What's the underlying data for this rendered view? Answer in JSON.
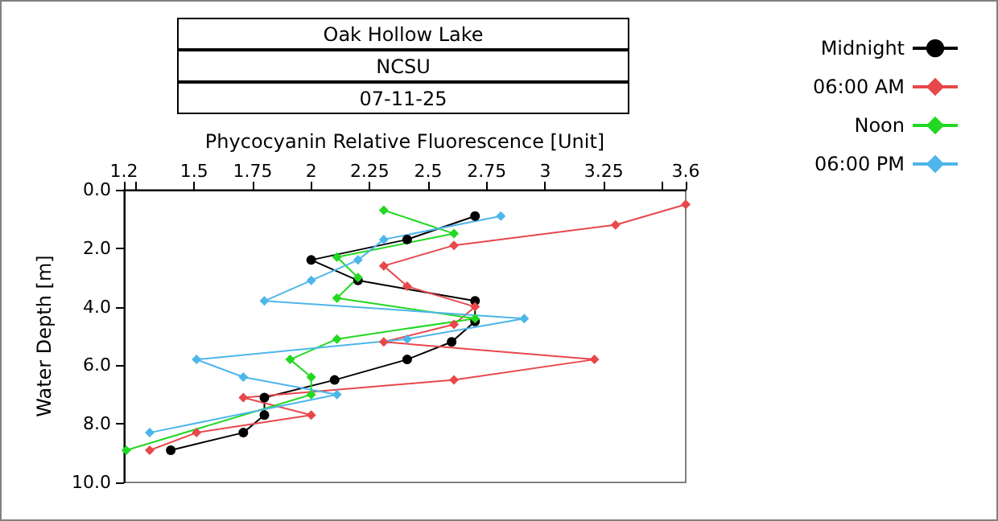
{
  "chart_data": {
    "type": "line",
    "title": "Oak Hollow Lake",
    "subtitle": "NCSU",
    "annotations": [
      "07-11-25"
    ],
    "xlabel": "Phycocyanin Relative Fluorescence [Unit]",
    "ylabel": "Water Depth [m]",
    "xlim": [
      1.2,
      3.6
    ],
    "xticks": [
      1.2,
      {
        "value": 1.25,
        "label": null
      },
      1.5,
      1.75,
      2,
      2.25,
      2.5,
      2.75,
      3,
      3.25,
      {
        "value": 3.5,
        "label": null
      },
      3.6
    ],
    "ylim": [
      10,
      0
    ],
    "yticks": [
      {
        "value": 0,
        "label": "0.0"
      },
      {
        "value": 2,
        "label": "2.0"
      },
      {
        "value": 4,
        "label": "4.0"
      },
      {
        "value": 6,
        "label": "6.0"
      },
      {
        "value": 8,
        "label": "8.0"
      },
      {
        "value": 10,
        "label": "10.0"
      }
    ],
    "grid": false,
    "legend": "top right",
    "marker": "diamond",
    "line_style": "solid",
    "series": [
      {
        "name": "Midnight",
        "color": "#000000",
        "marker": "circle",
        "x": [
          2.7,
          2.41,
          2.0,
          2.2,
          2.7,
          2.7,
          2.6,
          2.41,
          2.1,
          1.8,
          1.8,
          1.71,
          1.4
        ],
        "values": [
          0.9,
          1.7,
          2.4,
          3.1,
          3.8,
          4.5,
          5.2,
          5.8,
          6.5,
          7.1,
          7.7,
          8.3,
          8.9
        ]
      },
      {
        "name": "06:00 AM",
        "color": "#e8474b",
        "x": [
          3.6,
          3.3,
          2.61,
          2.31,
          2.41,
          2.7,
          2.61,
          2.31,
          3.21,
          2.61,
          1.71,
          2.0,
          1.51,
          1.31
        ],
        "values": [
          0.5,
          1.2,
          1.9,
          2.6,
          3.3,
          4.0,
          4.6,
          5.2,
          5.8,
          6.5,
          7.1,
          7.7,
          8.3,
          8.9
        ]
      },
      {
        "name": "Noon",
        "color": "#22d822",
        "x": [
          2.31,
          2.61,
          2.11,
          2.2,
          2.11,
          2.7,
          2.11,
          1.91,
          2.0,
          2.0,
          1.21
        ],
        "values": [
          0.7,
          1.5,
          2.3,
          3.0,
          3.7,
          4.4,
          5.1,
          5.8,
          6.4,
          7.0,
          8.9
        ]
      },
      {
        "name": "06:00 PM",
        "color": "#4db6ea",
        "x": [
          2.81,
          2.31,
          2.2,
          2.0,
          1.8,
          2.91,
          2.41,
          1.51,
          1.71,
          2.11,
          1.31
        ],
        "values": [
          0.9,
          1.7,
          2.4,
          3.1,
          3.8,
          4.4,
          5.1,
          5.8,
          6.4,
          7.0,
          8.3
        ]
      }
    ]
  }
}
